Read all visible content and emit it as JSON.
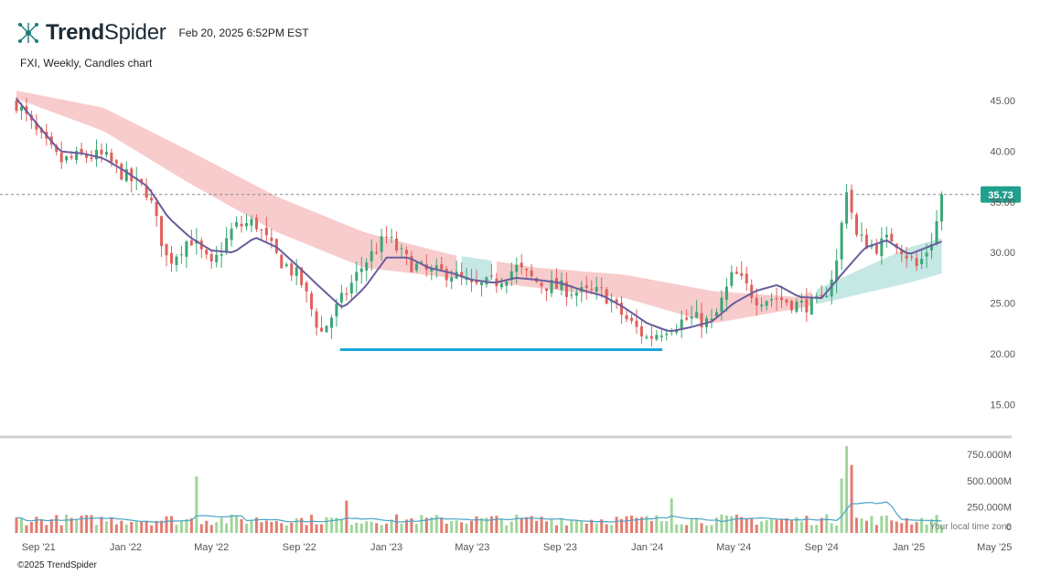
{
  "header": {
    "brand_bold": "Trend",
    "brand_light": "Spider",
    "timestamp": "Feb 20, 2025 6:52PM EST"
  },
  "subtitle": "FXI, Weekly, Candles chart",
  "footer": "©2025 TrendSpider",
  "timezone_note": "Your local time zone",
  "colors": {
    "up": "#3aa776",
    "down": "#e0605a",
    "ma_line": "#6a5d9c",
    "band_bear": "#f7c6c6",
    "band_bull": "#bfe5e1",
    "support": "#1aa6d9",
    "last_price_tag": "#22a08e",
    "vol_up": "#9fd69a",
    "vol_down": "#e27d71"
  },
  "chart_data": {
    "type": "candlestick",
    "symbol": "FXI",
    "interval": "Weekly",
    "last_price": 35.73,
    "last_price_label": "35.73",
    "x_range": [
      "2021-08-01",
      "2025-05-25"
    ],
    "ylim": [
      12.5,
      47
    ],
    "y_ticks": [
      "45.00",
      "40.00",
      "35.00",
      "30.00",
      "25.00",
      "20.00",
      "15.00"
    ],
    "x_ticks": [
      {
        "label": "Sep '21",
        "date": "2021-09-01"
      },
      {
        "label": "Jan '22",
        "date": "2022-01-01"
      },
      {
        "label": "May '22",
        "date": "2022-05-01"
      },
      {
        "label": "Sep '22",
        "date": "2022-09-01"
      },
      {
        "label": "Jan '23",
        "date": "2023-01-01"
      },
      {
        "label": "May '23",
        "date": "2023-05-01"
      },
      {
        "label": "Sep '23",
        "date": "2023-09-01"
      },
      {
        "label": "Jan '24",
        "date": "2024-01-01"
      },
      {
        "label": "May '24",
        "date": "2024-05-01"
      },
      {
        "label": "Sep '24",
        "date": "2024-09-01"
      },
      {
        "label": "Jan '25",
        "date": "2025-01-01"
      },
      {
        "label": "May '25",
        "date": "2025-05-01"
      }
    ],
    "price_path": [
      [
        "2021-08-01",
        44.8
      ],
      [
        "2021-09-01",
        41.5
      ],
      [
        "2021-10-01",
        39.0
      ],
      [
        "2021-11-01",
        39.5
      ],
      [
        "2021-12-01",
        39.5
      ],
      [
        "2022-01-01",
        37.5
      ],
      [
        "2022-02-01",
        36.0
      ],
      [
        "2022-03-01",
        29.0
      ],
      [
        "2022-04-01",
        31.5
      ],
      [
        "2022-05-01",
        28.5
      ],
      [
        "2022-06-01",
        32.5
      ],
      [
        "2022-07-01",
        33.0
      ],
      [
        "2022-08-01",
        29.5
      ],
      [
        "2022-09-01",
        27.5
      ],
      [
        "2022-10-01",
        22.0
      ],
      [
        "2022-11-01",
        25.5
      ],
      [
        "2022-12-01",
        29.0
      ],
      [
        "2023-01-01",
        31.5
      ],
      [
        "2023-02-01",
        29.0
      ],
      [
        "2023-03-01",
        28.0
      ],
      [
        "2023-04-01",
        28.0
      ],
      [
        "2023-05-01",
        26.5
      ],
      [
        "2023-06-01",
        27.0
      ],
      [
        "2023-07-01",
        28.5
      ],
      [
        "2023-08-01",
        27.0
      ],
      [
        "2023-09-01",
        26.5
      ],
      [
        "2023-10-01",
        26.0
      ],
      [
        "2023-11-01",
        26.0
      ],
      [
        "2023-12-01",
        23.5
      ],
      [
        "2024-01-01",
        21.5
      ],
      [
        "2024-02-01",
        22.8
      ],
      [
        "2024-03-01",
        23.5
      ],
      [
        "2024-04-01",
        23.0
      ],
      [
        "2024-05-01",
        28.0
      ],
      [
        "2024-06-01",
        25.5
      ],
      [
        "2024-07-01",
        25.5
      ],
      [
        "2024-08-01",
        24.8
      ],
      [
        "2024-09-01",
        25.0
      ],
      [
        "2024-09-22",
        29.0
      ],
      [
        "2024-10-06",
        36.5
      ],
      [
        "2024-10-20",
        31.5
      ],
      [
        "2024-11-15",
        30.5
      ],
      [
        "2024-12-10",
        31.5
      ],
      [
        "2025-01-13",
        28.5
      ],
      [
        "2025-02-01",
        31.0
      ],
      [
        "2025-02-20",
        35.73
      ]
    ],
    "moving_average": [
      [
        "2021-08-01",
        45.2
      ],
      [
        "2021-09-01",
        42.5
      ],
      [
        "2021-10-01",
        40.0
      ],
      [
        "2021-11-01",
        39.8
      ],
      [
        "2021-12-01",
        39.3
      ],
      [
        "2022-01-01",
        38.0
      ],
      [
        "2022-02-01",
        36.5
      ],
      [
        "2022-03-01",
        33.5
      ],
      [
        "2022-04-01",
        31.5
      ],
      [
        "2022-05-01",
        30.2
      ],
      [
        "2022-06-01",
        30.0
      ],
      [
        "2022-07-01",
        31.5
      ],
      [
        "2022-08-01",
        30.5
      ],
      [
        "2022-09-01",
        28.5
      ],
      [
        "2022-10-01",
        26.5
      ],
      [
        "2022-11-01",
        24.5
      ],
      [
        "2022-12-01",
        26.5
      ],
      [
        "2023-01-01",
        29.5
      ],
      [
        "2023-02-01",
        29.5
      ],
      [
        "2023-03-01",
        28.5
      ],
      [
        "2023-04-01",
        28.0
      ],
      [
        "2023-05-01",
        27.3
      ],
      [
        "2023-06-01",
        27.0
      ],
      [
        "2023-07-01",
        27.5
      ],
      [
        "2023-08-01",
        27.3
      ],
      [
        "2023-09-01",
        27.0
      ],
      [
        "2023-10-01",
        26.3
      ],
      [
        "2023-11-01",
        25.7
      ],
      [
        "2023-12-01",
        24.5
      ],
      [
        "2024-01-01",
        23.0
      ],
      [
        "2024-02-01",
        22.2
      ],
      [
        "2024-03-01",
        22.6
      ],
      [
        "2024-04-01",
        23.2
      ],
      [
        "2024-05-01",
        25.0
      ],
      [
        "2024-06-01",
        26.2
      ],
      [
        "2024-07-01",
        26.8
      ],
      [
        "2024-08-01",
        25.6
      ],
      [
        "2024-09-01",
        25.5
      ],
      [
        "2024-10-01",
        28.0
      ],
      [
        "2024-11-01",
        30.5
      ],
      [
        "2024-12-01",
        31.2
      ],
      [
        "2025-01-01",
        29.8
      ],
      [
        "2025-02-20",
        31.2
      ]
    ],
    "band_upper": [
      [
        "2021-08-01",
        46.0
      ],
      [
        "2021-12-01",
        44.3
      ],
      [
        "2022-04-01",
        40.0
      ],
      [
        "2022-08-01",
        35.5
      ],
      [
        "2022-12-01",
        32.0
      ],
      [
        "2023-04-01",
        29.8
      ],
      [
        "2023-08-01",
        28.5
      ],
      [
        "2023-12-01",
        27.8
      ],
      [
        "2024-04-01",
        26.2
      ],
      [
        "2024-08-01",
        25.6
      ],
      [
        "2025-01-01",
        30.5
      ],
      [
        "2025-02-20",
        31.5
      ]
    ],
    "band_lower": [
      [
        "2021-08-01",
        45.2
      ],
      [
        "2021-12-01",
        42.0
      ],
      [
        "2022-04-01",
        36.8
      ],
      [
        "2022-08-01",
        32.0
      ],
      [
        "2022-12-01",
        28.5
      ],
      [
        "2023-04-01",
        27.5
      ],
      [
        "2023-08-01",
        26.5
      ],
      [
        "2023-12-01",
        25.5
      ],
      [
        "2024-04-01",
        23.0
      ],
      [
        "2024-08-01",
        24.5
      ],
      [
        "2025-01-01",
        27.0
      ],
      [
        "2025-02-20",
        28.0
      ]
    ],
    "support_line": {
      "start": "2022-10-28",
      "end": "2024-01-22",
      "value": 20.4
    },
    "volume": {
      "y_ticks": [
        "750.000M",
        "500.000M",
        "250.000M"
      ],
      "max": 830,
      "baseline_avg": 120,
      "spikes": [
        [
          "2022-04-08",
          540
        ],
        [
          "2022-11-04",
          310
        ],
        [
          "2024-02-05",
          330
        ],
        [
          "2024-10-04",
          830
        ],
        [
          "2024-10-11",
          650
        ],
        [
          "2024-09-27",
          520
        ]
      ]
    }
  }
}
